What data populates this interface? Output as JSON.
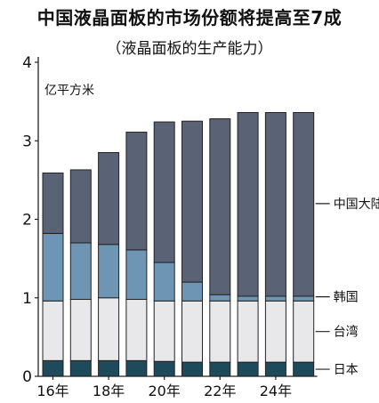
{
  "chart_data": {
    "type": "bar",
    "stacked": true,
    "title": "中国液晶面板的市场份额将提高至7成",
    "subtitle": "（液晶面板的生产能力）",
    "ylabel": "亿平方米",
    "xlabel": "",
    "ylim": [
      0,
      4
    ],
    "yticks": [
      "0",
      "1",
      "2",
      "3",
      "4"
    ],
    "x_tick_labels": [
      "16年",
      "18年",
      "20年",
      "22年",
      "24年"
    ],
    "categories": [
      "2016",
      "2017",
      "2018",
      "2019",
      "2020",
      "2021",
      "2022",
      "2023",
      "2024",
      "2025"
    ],
    "series": [
      {
        "name": "日本",
        "color": "#1f4a5c",
        "values": [
          0.2,
          0.2,
          0.2,
          0.2,
          0.19,
          0.18,
          0.18,
          0.18,
          0.18,
          0.18
        ]
      },
      {
        "name": "台湾",
        "color": "#e8e8ea",
        "values": [
          0.76,
          0.78,
          0.8,
          0.78,
          0.77,
          0.78,
          0.78,
          0.78,
          0.78,
          0.78
        ]
      },
      {
        "name": "韩国",
        "color": "#6f95b4",
        "values": [
          0.86,
          0.72,
          0.68,
          0.63,
          0.49,
          0.24,
          0.08,
          0.06,
          0.06,
          0.06
        ]
      },
      {
        "name": "中国大陆",
        "color": "#5a6275",
        "values": [
          0.77,
          0.93,
          1.17,
          1.5,
          1.79,
          2.05,
          2.24,
          2.34,
          2.34,
          2.34
        ]
      }
    ],
    "legend_placement": "right, inline labels",
    "grid": false
  }
}
